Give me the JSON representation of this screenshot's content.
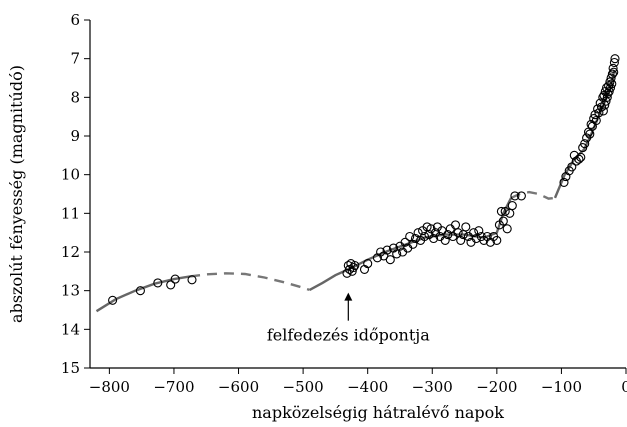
{
  "chart_data": {
    "type": "scatter",
    "title": "",
    "xlabel": "napközelségig hátralévő napok",
    "ylabel": "abszolút fényesség (magnitúdó)",
    "xlim": [
      -830,
      0
    ],
    "ylim": [
      15,
      6
    ],
    "y_inverted": true,
    "grid": false,
    "x_ticks": [
      -800,
      -700,
      -600,
      -500,
      -400,
      -300,
      -200,
      -100,
      0
    ],
    "y_ticks": [
      6,
      7,
      8,
      9,
      10,
      11,
      12,
      13,
      14,
      15
    ],
    "annotations": [
      {
        "text": "felfedezés időpontja",
        "x": -430,
        "y": 13.0
      }
    ],
    "trend_curve": {
      "solid_segments": [
        [
          [
            -820,
            13.53
          ],
          [
            -790,
            13.22
          ],
          [
            -760,
            13.0
          ],
          [
            -730,
            12.82
          ],
          [
            -700,
            12.7
          ],
          [
            -675,
            12.63
          ]
        ],
        [
          [
            -490,
            12.98
          ],
          [
            -470,
            12.8
          ],
          [
            -450,
            12.6
          ],
          [
            -430,
            12.45
          ],
          [
            -400,
            12.2
          ],
          [
            -370,
            11.98
          ],
          [
            -340,
            11.8
          ],
          [
            -310,
            11.62
          ],
          [
            -280,
            11.55
          ],
          [
            -250,
            11.55
          ],
          [
            -220,
            11.63
          ],
          [
            -200,
            11.5
          ],
          [
            -190,
            11.0
          ],
          [
            -178,
            10.6
          ]
        ],
        [
          [
            -110,
            10.6
          ],
          [
            -95,
            10.0
          ],
          [
            -80,
            9.6
          ],
          [
            -65,
            9.35
          ],
          [
            -55,
            9.0
          ],
          [
            -45,
            8.6
          ],
          [
            -35,
            8.2
          ],
          [
            -25,
            7.8
          ],
          [
            -18,
            7.3
          ]
        ]
      ],
      "dashed_segments": [
        [
          [
            -675,
            12.63
          ],
          [
            -650,
            12.58
          ],
          [
            -620,
            12.55
          ],
          [
            -590,
            12.57
          ],
          [
            -560,
            12.66
          ],
          [
            -530,
            12.78
          ],
          [
            -505,
            12.9
          ],
          [
            -490,
            12.98
          ]
        ],
        [
          [
            -178,
            10.6
          ],
          [
            -165,
            10.5
          ],
          [
            -150,
            10.45
          ],
          [
            -135,
            10.5
          ],
          [
            -120,
            10.62
          ],
          [
            -110,
            10.6
          ]
        ]
      ]
    },
    "points": [
      [
        -795,
        13.25
      ],
      [
        -752,
        13.0
      ],
      [
        -725,
        12.8
      ],
      [
        -705,
        12.85
      ],
      [
        -698,
        12.7
      ],
      [
        -672,
        12.72
      ],
      [
        -432,
        12.55
      ],
      [
        -430,
        12.35
      ],
      [
        -428,
        12.45
      ],
      [
        -426,
        12.3
      ],
      [
        -424,
        12.5
      ],
      [
        -422,
        12.4
      ],
      [
        -420,
        12.35
      ],
      [
        -405,
        12.45
      ],
      [
        -400,
        12.3
      ],
      [
        -385,
        12.15
      ],
      [
        -380,
        12.0
      ],
      [
        -375,
        12.1
      ],
      [
        -370,
        11.95
      ],
      [
        -365,
        12.2
      ],
      [
        -360,
        11.9
      ],
      [
        -355,
        12.05
      ],
      [
        -350,
        11.85
      ],
      [
        -346,
        12.0
      ],
      [
        -342,
        11.75
      ],
      [
        -338,
        11.9
      ],
      [
        -335,
        11.6
      ],
      [
        -330,
        11.8
      ],
      [
        -326,
        11.65
      ],
      [
        -322,
        11.5
      ],
      [
        -318,
        11.7
      ],
      [
        -315,
        11.45
      ],
      [
        -312,
        11.6
      ],
      [
        -308,
        11.35
      ],
      [
        -305,
        11.55
      ],
      [
        -302,
        11.4
      ],
      [
        -298,
        11.65
      ],
      [
        -295,
        11.5
      ],
      [
        -292,
        11.35
      ],
      [
        -288,
        11.6
      ],
      [
        -285,
        11.45
      ],
      [
        -280,
        11.7
      ],
      [
        -276,
        11.55
      ],
      [
        -272,
        11.4
      ],
      [
        -268,
        11.6
      ],
      [
        -264,
        11.3
      ],
      [
        -260,
        11.5
      ],
      [
        -256,
        11.7
      ],
      [
        -252,
        11.55
      ],
      [
        -248,
        11.35
      ],
      [
        -244,
        11.6
      ],
      [
        -240,
        11.75
      ],
      [
        -236,
        11.5
      ],
      [
        -232,
        11.65
      ],
      [
        -228,
        11.45
      ],
      [
        -224,
        11.6
      ],
      [
        -220,
        11.7
      ],
      [
        -215,
        11.6
      ],
      [
        -210,
        11.75
      ],
      [
        -205,
        11.6
      ],
      [
        -200,
        11.7
      ],
      [
        -196,
        11.3
      ],
      [
        -193,
        10.95
      ],
      [
        -190,
        11.2
      ],
      [
        -187,
        10.95
      ],
      [
        -184,
        11.4
      ],
      [
        -180,
        11.0
      ],
      [
        -176,
        10.8
      ],
      [
        -172,
        10.55
      ],
      [
        -162,
        10.55
      ],
      [
        -96,
        10.2
      ],
      [
        -93,
        10.05
      ],
      [
        -88,
        9.9
      ],
      [
        -84,
        9.8
      ],
      [
        -80,
        9.5
      ],
      [
        -77,
        9.65
      ],
      [
        -73,
        9.6
      ],
      [
        -70,
        9.55
      ],
      [
        -67,
        9.3
      ],
      [
        -64,
        9.2
      ],
      [
        -61,
        9.05
      ],
      [
        -58,
        8.9
      ],
      [
        -56,
        8.95
      ],
      [
        -54,
        8.7
      ],
      [
        -52,
        8.75
      ],
      [
        -50,
        8.55
      ],
      [
        -48,
        8.45
      ],
      [
        -46,
        8.6
      ],
      [
        -44,
        8.3
      ],
      [
        -42,
        8.4
      ],
      [
        -40,
        8.15
      ],
      [
        -38,
        8.25
      ],
      [
        -36,
        8.0
      ],
      [
        -35,
        8.35
      ],
      [
        -34,
        7.95
      ],
      [
        -33,
        8.2
      ],
      [
        -32,
        7.85
      ],
      [
        -31,
        8.1
      ],
      [
        -30,
        7.75
      ],
      [
        -29,
        8.0
      ],
      [
        -28,
        7.9
      ],
      [
        -27,
        7.7
      ],
      [
        -26,
        7.85
      ],
      [
        -25,
        7.6
      ],
      [
        -24,
        7.75
      ],
      [
        -23,
        7.5
      ],
      [
        -22,
        7.65
      ],
      [
        -21,
        7.4
      ],
      [
        -20,
        7.25
      ],
      [
        -19,
        7.35
      ],
      [
        -18,
        7.1
      ],
      [
        -17,
        7.0
      ]
    ]
  }
}
